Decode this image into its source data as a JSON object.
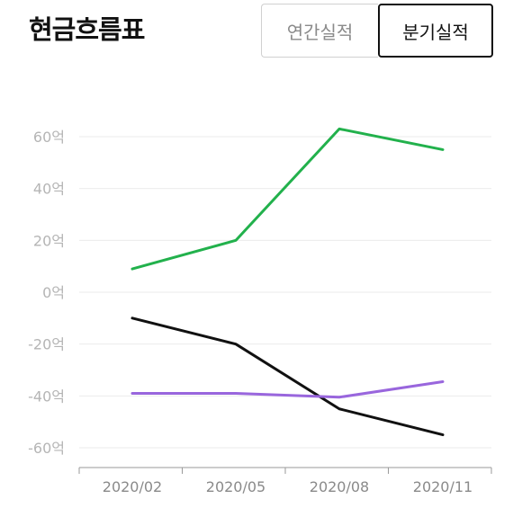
{
  "title": "현금흐름표",
  "toggle": {
    "annual_label": "연간실적",
    "quarterly_label": "분기실적",
    "selected": "quarterly"
  },
  "chart_data": {
    "type": "line",
    "title": "",
    "xlabel": "",
    "ylabel": "",
    "categories": [
      "2020/02",
      "2020/05",
      "2020/08",
      "2020/11"
    ],
    "ylim": [
      -60,
      60
    ],
    "yticks": [
      60,
      40,
      20,
      0,
      -20,
      -40,
      -60
    ],
    "ytick_labels": [
      "60억",
      "40억",
      "20억",
      "0억",
      "-20억",
      "-40억",
      "-60억"
    ],
    "grid": true,
    "series": [
      {
        "color": "#22b14c",
        "values": [
          9,
          20,
          63,
          55
        ]
      },
      {
        "color": "#111111",
        "values": [
          -10,
          -20,
          -45,
          -55
        ]
      },
      {
        "color": "#9966dd",
        "values": [
          -39,
          -39,
          -40.5,
          -34.5
        ]
      }
    ]
  }
}
